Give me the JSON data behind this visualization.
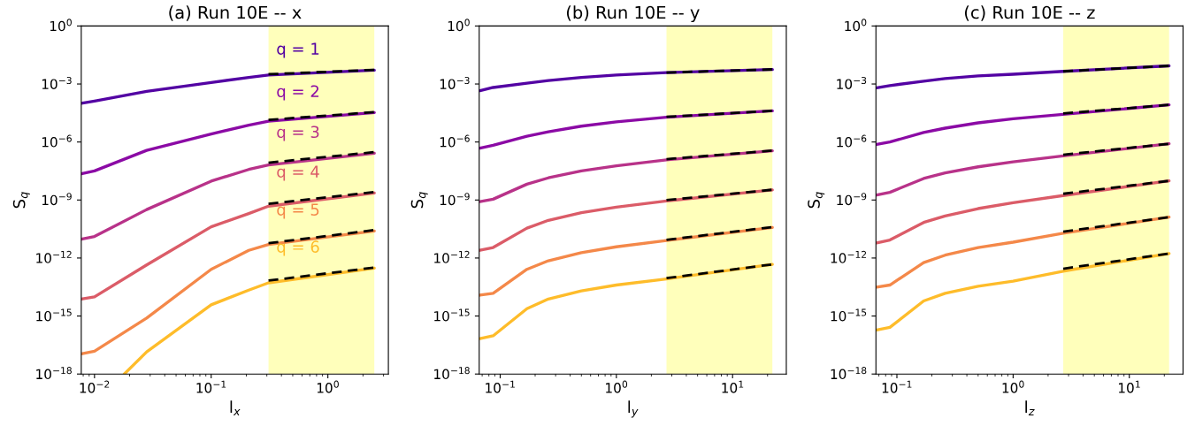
{
  "chart_data": [
    {
      "type": "line",
      "title": "(a) Run 10E -- x",
      "xlabel": "l$_{x}$",
      "ylabel": "S$_{q}$",
      "log": "xy",
      "legend": false,
      "grid": false,
      "xlim": [
        0.0077,
        3.3
      ],
      "ylim": [
        1e-18,
        1
      ],
      "xticks": [
        {
          "value": 0.01,
          "label": "10$^{−2}$"
        },
        {
          "value": 0.1,
          "label": "10$^{−1}$"
        },
        {
          "value": 1,
          "label": "10$^{0}$"
        }
      ],
      "yticks": [
        {
          "value": 1e-18,
          "label": "10$^{−18}$"
        },
        {
          "value": 1e-15,
          "label": "10$^{−15}$"
        },
        {
          "value": 1e-12,
          "label": "10$^{−12}$"
        },
        {
          "value": 1e-09,
          "label": "10$^{−9}$"
        },
        {
          "value": 1e-06,
          "label": "10$^{−6}$"
        },
        {
          "value": 0.001,
          "label": "10$^{−3}$"
        },
        {
          "value": 1,
          "label": "10$^{0}$"
        }
      ],
      "bands": [
        {
          "axis": "x",
          "from": 0.31,
          "to": 2.5,
          "color": "#ffffbb"
        }
      ],
      "x": [
        0.0077,
        0.01,
        0.028,
        0.1,
        0.21,
        0.31,
        2.5
      ],
      "series": [
        {
          "name": "q = 1",
          "color": "#5302a3",
          "values": [
            0.0001,
            0.00013,
            0.00042,
            0.0012,
            0.0022,
            0.0029,
            0.0052
          ]
        },
        {
          "name": "q = 2",
          "color": "#8b0aa5",
          "values": [
            2.3e-08,
            3.2e-08,
            3.7e-07,
            2.6e-06,
            7.4e-06,
            1.2e-05,
            3.3e-05
          ]
        },
        {
          "name": "q = 3",
          "color": "#b83289",
          "values": [
            9.5e-12,
            1.3e-11,
            3.2e-10,
            9.5e-09,
            3.8e-08,
            6.5e-08,
            2.6e-07
          ]
        },
        {
          "name": "q = 4",
          "color": "#db5c68",
          "values": [
            7.6e-15,
            9.8e-15,
            4.4e-13,
            4.1e-11,
            2e-10,
            4.8e-10,
            2.3e-09
          ]
        },
        {
          "name": "q = 5",
          "color": "#f48849",
          "values": [
            1.1e-17,
            1.5e-17,
            7.8e-16,
            2.6e-13,
            2.5e-12,
            5e-12,
            2.5e-11
          ]
        },
        {
          "name": "q = 6",
          "color": "#febc2a",
          "x": [
            0.018,
            0.028,
            0.1,
            0.21,
            0.31,
            2.5
          ],
          "values": [
            1e-18,
            1.4e-17,
            3.8e-15,
            2.2e-14,
            5.2e-14,
            3e-13
          ]
        },
        {
          "color": "#000000",
          "line_style": "dashed",
          "x": [
            0.31,
            2.5
          ],
          "values": [
            0.0032,
            0.0054
          ]
        },
        {
          "color": "#000000",
          "line_style": "dashed",
          "x": [
            0.31,
            2.5
          ],
          "values": [
            1.4e-05,
            3.5e-05
          ]
        },
        {
          "color": "#000000",
          "line_style": "dashed",
          "x": [
            0.31,
            2.5
          ],
          "values": [
            8.5e-08,
            3e-07
          ]
        },
        {
          "color": "#000000",
          "line_style": "dashed",
          "x": [
            0.31,
            2.5
          ],
          "values": [
            6.3e-10,
            2.6e-09
          ]
        },
        {
          "color": "#000000",
          "line_style": "dashed",
          "x": [
            0.31,
            2.5
          ],
          "values": [
            5.8e-12,
            2.8e-11
          ]
        },
        {
          "color": "#000000",
          "line_style": "dashed",
          "x": [
            0.31,
            2.5
          ],
          "values": [
            6.8e-14,
            3.2e-13
          ]
        }
      ]
    },
    {
      "type": "line",
      "title": "(b) Run 10E -- y",
      "xlabel": "l$_{y}$",
      "ylabel": "S$_{q}$",
      "log": "xy",
      "legend": false,
      "grid": false,
      "xlim": [
        0.066,
        29
      ],
      "ylim": [
        1e-18,
        1
      ],
      "xticks": [
        {
          "value": 0.1,
          "label": "10$^{−1}$"
        },
        {
          "value": 1,
          "label": "10$^{0}$"
        },
        {
          "value": 10,
          "label": "10$^{1}$"
        }
      ],
      "yticks": [
        {
          "value": 1e-18,
          "label": "10$^{−18}$"
        },
        {
          "value": 1e-15,
          "label": "10$^{−15}$"
        },
        {
          "value": 1e-12,
          "label": "10$^{−12}$"
        },
        {
          "value": 1e-09,
          "label": "10$^{−9}$"
        },
        {
          "value": 1e-06,
          "label": "10$^{−6}$"
        },
        {
          "value": 0.001,
          "label": "10$^{−3}$"
        },
        {
          "value": 1,
          "label": "10$^{0}$"
        }
      ],
      "bands": [
        {
          "axis": "x",
          "from": 2.7,
          "to": 22,
          "color": "#ffffbb"
        }
      ],
      "x": [
        0.067,
        0.087,
        0.17,
        0.26,
        0.5,
        1,
        2.7,
        22
      ],
      "series": [
        {
          "color": "#5302a3",
          "values": [
            0.00045,
            0.00066,
            0.0011,
            0.0015,
            0.0022,
            0.0029,
            0.0039,
            0.0056
          ]
        },
        {
          "color": "#8b0aa5",
          "values": [
            4.8e-07,
            6.8e-07,
            2e-06,
            3.4e-06,
            6.6e-06,
            1.1e-05,
            1.9e-05,
            4.1e-05
          ]
        },
        {
          "color": "#b83289",
          "values": [
            8.3e-10,
            1.1e-09,
            6.6e-09,
            1.4e-08,
            3.2e-08,
            5.9e-08,
            1.2e-07,
            3.5e-07
          ]
        },
        {
          "color": "#db5c68",
          "values": [
            2.5e-12,
            3.5e-12,
            3.5e-11,
            8.9e-11,
            2.2e-10,
            4.3e-10,
            8.9e-10,
            3.3e-09
          ]
        },
        {
          "color": "#f48849",
          "values": [
            1.2e-14,
            1.5e-14,
            2.6e-13,
            7.2e-13,
            1.9e-12,
            3.8e-12,
            8.1e-12,
            3.8e-11
          ]
        },
        {
          "color": "#febc2a",
          "values": [
            6.8e-17,
            9.5e-17,
            2.4e-15,
            7.6e-15,
            2e-14,
            4e-14,
            8.3e-14,
            4.7e-13
          ]
        },
        {
          "color": "#000000",
          "line_style": "dashed",
          "x": [
            2.7,
            22
          ],
          "values": [
            0.0039,
            0.0057
          ]
        },
        {
          "color": "#000000",
          "line_style": "dashed",
          "x": [
            2.7,
            22
          ],
          "values": [
            2e-05,
            4.1e-05
          ]
        },
        {
          "color": "#000000",
          "line_style": "dashed",
          "x": [
            2.7,
            22
          ],
          "values": [
            1.3e-07,
            3.6e-07
          ]
        },
        {
          "color": "#000000",
          "line_style": "dashed",
          "x": [
            2.7,
            22
          ],
          "values": [
            9.8e-10,
            3.4e-09
          ]
        },
        {
          "color": "#000000",
          "line_style": "dashed",
          "x": [
            2.7,
            22
          ],
          "values": [
            8.7e-12,
            4e-11
          ]
        },
        {
          "color": "#000000",
          "line_style": "dashed",
          "x": [
            2.7,
            22
          ],
          "values": [
            9.1e-14,
            4.7e-13
          ]
        }
      ]
    },
    {
      "type": "line",
      "title": "(c) Run 10E -- z",
      "xlabel": "l$_{z}$",
      "ylabel": "S$_{q}$",
      "log": "xy",
      "legend": false,
      "grid": false,
      "xlim": [
        0.066,
        29
      ],
      "ylim": [
        1e-18,
        1
      ],
      "xticks": [
        {
          "value": 0.1,
          "label": "10$^{−1}$"
        },
        {
          "value": 1,
          "label": "10$^{0}$"
        },
        {
          "value": 10,
          "label": "10$^{1}$"
        }
      ],
      "yticks": [
        {
          "value": 1e-18,
          "label": "10$^{−18}$"
        },
        {
          "value": 1e-15,
          "label": "10$^{−15}$"
        },
        {
          "value": 1e-12,
          "label": "10$^{−12}$"
        },
        {
          "value": 1e-09,
          "label": "10$^{−9}$"
        },
        {
          "value": 1e-06,
          "label": "10$^{−6}$"
        },
        {
          "value": 0.001,
          "label": "10$^{−3}$"
        },
        {
          "value": 1,
          "label": "10$^{0}$"
        }
      ],
      "bands": [
        {
          "axis": "x",
          "from": 2.7,
          "to": 22,
          "color": "#ffffbb"
        }
      ],
      "x": [
        0.067,
        0.087,
        0.17,
        0.26,
        0.5,
        1,
        2.7,
        22
      ],
      "series": [
        {
          "color": "#5302a3",
          "values": [
            0.00063,
            0.00083,
            0.0014,
            0.0019,
            0.0026,
            0.0032,
            0.0045,
            0.0087
          ]
        },
        {
          "color": "#8b0aa5",
          "values": [
            7.6e-07,
            1e-06,
            3.1e-06,
            5.2e-06,
            9.8e-06,
            1.6e-05,
            2.7e-05,
            8.3e-05
          ]
        },
        {
          "color": "#b83289",
          "values": [
            1.8e-09,
            2.5e-09,
            1.3e-08,
            2.5e-08,
            5.2e-08,
            9.5e-08,
            1.9e-07,
            8.1e-07
          ]
        },
        {
          "color": "#db5c68",
          "values": [
            6e-12,
            8.5e-12,
            6.9e-11,
            1.5e-10,
            3.6e-10,
            7.2e-10,
            1.7e-09,
            9.8e-09
          ]
        },
        {
          "color": "#f48849",
          "values": [
            3.1e-14,
            4e-14,
            5.8e-13,
            1.4e-12,
            3.5e-12,
            6.6e-12,
            1.9e-11,
            1.3e-10
          ]
        },
        {
          "color": "#febc2a",
          "values": [
            1.9e-16,
            2.6e-16,
            6e-15,
            1.5e-14,
            3.5e-14,
            6.3e-14,
            2.1e-13,
            1.7e-12
          ]
        },
        {
          "color": "#000000",
          "line_style": "dashed",
          "x": [
            2.7,
            22
          ],
          "values": [
            0.0045,
            0.0087
          ]
        },
        {
          "color": "#000000",
          "line_style": "dashed",
          "x": [
            2.7,
            22
          ],
          "values": [
            3e-05,
            8.3e-05
          ]
        },
        {
          "color": "#000000",
          "line_style": "dashed",
          "x": [
            2.7,
            22
          ],
          "values": [
            2.2e-07,
            8.1e-07
          ]
        },
        {
          "color": "#000000",
          "line_style": "dashed",
          "x": [
            2.7,
            22
          ],
          "values": [
            2.1e-09,
            9.8e-09
          ]
        },
        {
          "color": "#000000",
          "line_style": "dashed",
          "x": [
            2.7,
            22
          ],
          "values": [
            2.3e-11,
            1.3e-10
          ]
        },
        {
          "color": "#000000",
          "line_style": "dashed",
          "x": [
            2.7,
            22
          ],
          "values": [
            2.8e-13,
            1.7e-12
          ]
        }
      ]
    }
  ]
}
